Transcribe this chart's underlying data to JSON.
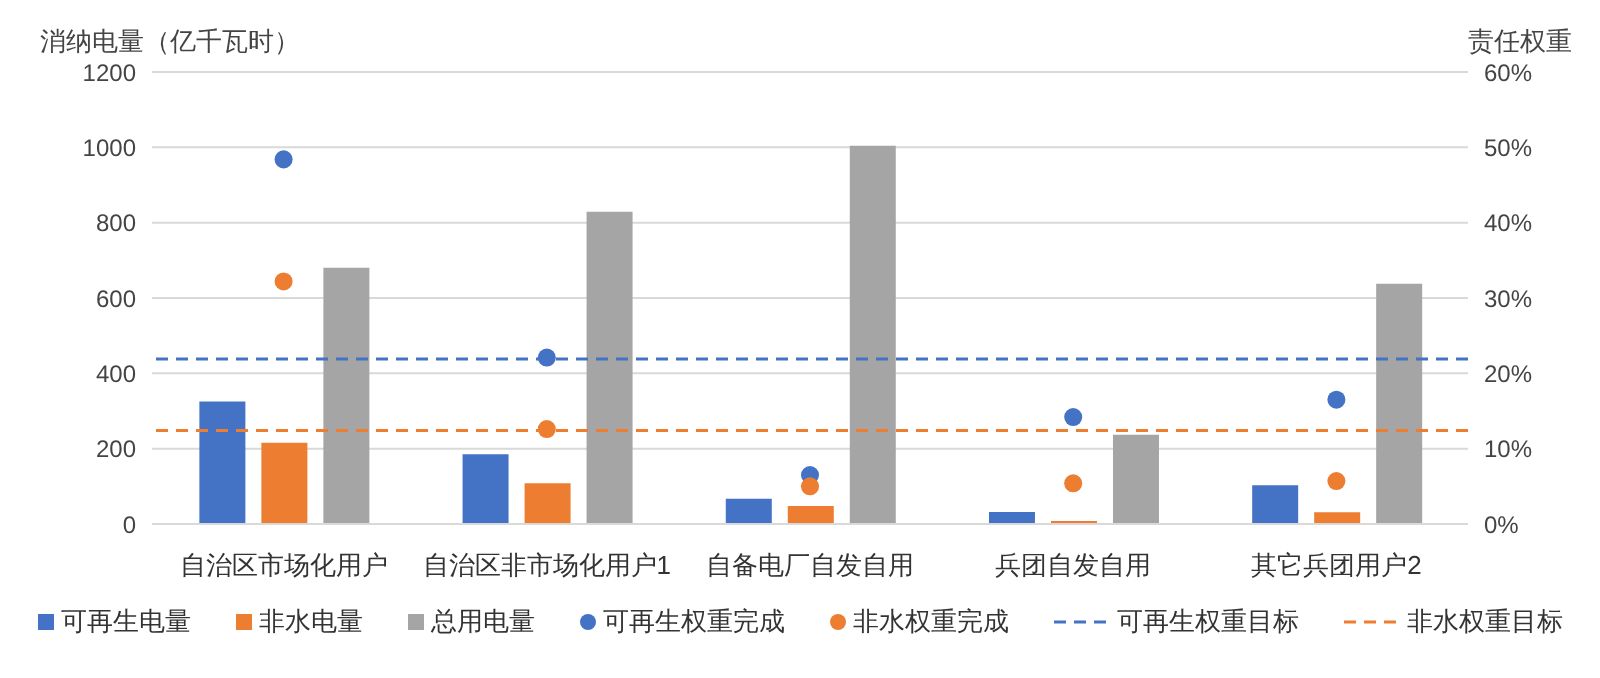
{
  "chart_data": {
    "type": "bar",
    "ylabel": "消纳电量（亿千瓦时）",
    "y2label": "责任权重",
    "categories": [
      "自治区市场化用户",
      "自治区非市场化用户1",
      "自备电厂自发自用",
      "兵团自发自用",
      "其它兵团用户2"
    ],
    "series": [
      {
        "name": "可再生电量",
        "color": "#4472c4",
        "values": [
          325,
          185,
          67,
          32,
          103
        ]
      },
      {
        "name": "非水电量",
        "color": "#ed7d31",
        "values": [
          216,
          108,
          48,
          8,
          31
        ]
      },
      {
        "name": "总用电量",
        "color": "#a5a5a5",
        "values": [
          680,
          829,
          1004,
          237,
          638
        ]
      },
      {
        "name": "可再生权重完成",
        "type": "scatter",
        "axis": "y2",
        "color": "#4472c4",
        "values": [
          48.4,
          22.1,
          6.5,
          14.2,
          16.5
        ]
      },
      {
        "name": "非水权重完成",
        "type": "scatter",
        "axis": "y2",
        "color": "#ed7d31",
        "values": [
          32.2,
          12.6,
          5,
          5.4,
          5.7
        ]
      }
    ],
    "ref_lines": [
      {
        "axis": "y2",
        "value": 21.9,
        "label": "可再生权重目标",
        "color": "#4472c4",
        "line_style": "dashed"
      },
      {
        "axis": "y2",
        "value": 12.4,
        "label": "非水权重目标",
        "color": "#ed7d31",
        "line_style": "dashed"
      }
    ],
    "ylim": [
      0,
      1200
    ],
    "yticks": [
      0,
      200,
      400,
      600,
      800,
      1000,
      1200
    ],
    "y2lim": [
      0,
      60
    ],
    "y2ticks": [
      {
        "value": 0,
        "label": "0%"
      },
      {
        "value": 10,
        "label": "10%"
      },
      {
        "value": 20,
        "label": "20%"
      },
      {
        "value": 30,
        "label": "30%"
      },
      {
        "value": 40,
        "label": "40%"
      },
      {
        "value": 50,
        "label": "50%"
      },
      {
        "value": 60,
        "label": "60%"
      }
    ],
    "grid": "y",
    "legend": "bottom",
    "marker": "circle"
  }
}
